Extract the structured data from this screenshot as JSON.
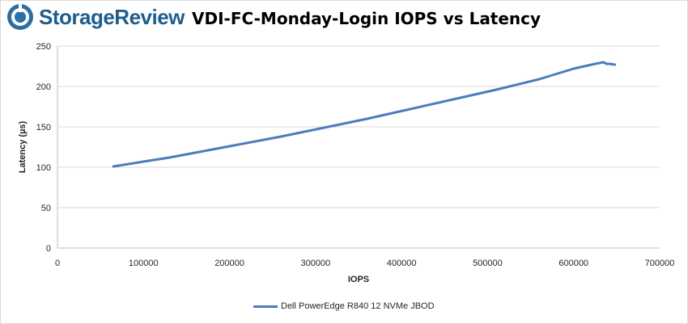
{
  "brand": {
    "name": "StorageReview",
    "icon": "storagereview-logo-icon"
  },
  "chart_data": {
    "type": "line",
    "title": "VDI-FC-Monday-Login IOPS vs Latency",
    "xlabel": "IOPS",
    "ylabel": "Latency (µs)",
    "xlim": [
      0,
      700000
    ],
    "ylim": [
      0,
      250
    ],
    "x_ticks": [
      0,
      100000,
      200000,
      300000,
      400000,
      500000,
      600000,
      700000
    ],
    "y_ticks": [
      0,
      50,
      100,
      150,
      200,
      250
    ],
    "grid": "horizontal",
    "legend_position": "bottom",
    "series": [
      {
        "name": "Dell PowerEdge R840 12 NVMe JBOD",
        "color": "#4a7ebb",
        "x": [
          65000,
          100000,
          130000,
          170000,
          210000,
          260000,
          310000,
          360000,
          410000,
          460000,
          510000,
          560000,
          600000,
          625000,
          635000,
          638000,
          642000,
          648000
        ],
        "y": [
          101,
          107,
          112,
          120,
          128,
          138,
          149,
          160,
          172,
          184,
          196,
          209,
          222,
          228,
          230,
          228,
          228,
          227
        ]
      }
    ]
  }
}
